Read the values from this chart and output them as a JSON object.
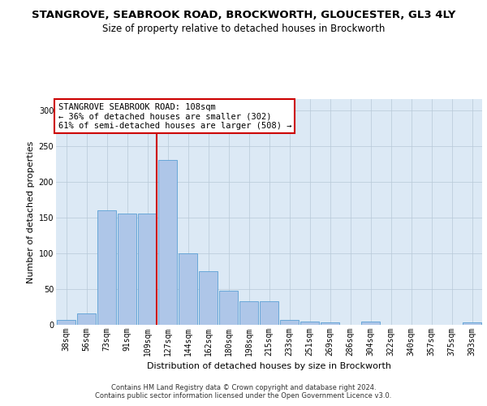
{
  "title_line1": "STANGROVE, SEABROOK ROAD, BROCKWORTH, GLOUCESTER, GL3 4LY",
  "title_line2": "Size of property relative to detached houses in Brockworth",
  "xlabel": "Distribution of detached houses by size in Brockworth",
  "ylabel": "Number of detached properties",
  "categories": [
    "38sqm",
    "56sqm",
    "73sqm",
    "91sqm",
    "109sqm",
    "127sqm",
    "144sqm",
    "162sqm",
    "180sqm",
    "198sqm",
    "215sqm",
    "233sqm",
    "251sqm",
    "269sqm",
    "286sqm",
    "304sqm",
    "322sqm",
    "340sqm",
    "357sqm",
    "375sqm",
    "393sqm"
  ],
  "values": [
    7,
    16,
    160,
    155,
    155,
    230,
    100,
    75,
    48,
    33,
    33,
    7,
    5,
    3,
    0,
    4,
    0,
    0,
    0,
    0,
    3
  ],
  "bar_color": "#aec6e8",
  "bar_edgecolor": "#5a9fd4",
  "reference_line_index": 4,
  "reference_line_color": "#cc0000",
  "annotation_text": "STANGROVE SEABROOK ROAD: 108sqm\n← 36% of detached houses are smaller (302)\n61% of semi-detached houses are larger (508) →",
  "annotation_box_color": "#ffffff",
  "annotation_box_edgecolor": "#cc0000",
  "ylim": [
    0,
    315
  ],
  "yticks": [
    0,
    50,
    100,
    150,
    200,
    250,
    300
  ],
  "background_color": "#dce9f5",
  "footer_text": "Contains HM Land Registry data © Crown copyright and database right 2024.\nContains public sector information licensed under the Open Government Licence v3.0.",
  "title_fontsize": 9.5,
  "subtitle_fontsize": 8.5,
  "xlabel_fontsize": 8,
  "ylabel_fontsize": 8,
  "tick_fontsize": 7,
  "footer_fontsize": 6
}
